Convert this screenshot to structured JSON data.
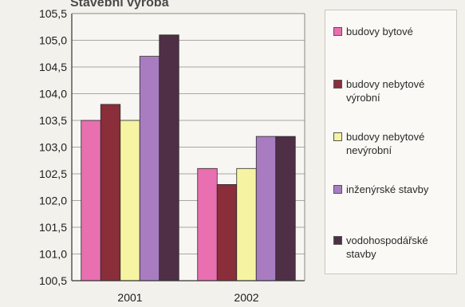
{
  "chart_data": {
    "type": "bar",
    "title": "",
    "title_fragment": "Stavební výroba",
    "xlabel": "",
    "ylabel": "",
    "categories": [
      "2001",
      "2002"
    ],
    "ylim": [
      100.5,
      105.5
    ],
    "yticks": [
      "105,5",
      "105,0",
      "104,5",
      "104,0",
      "103,5",
      "103,0",
      "102,5",
      "102,0",
      "101,5",
      "101,0",
      "100,5"
    ],
    "ytick_values": [
      105.5,
      105.0,
      104.5,
      104.0,
      103.5,
      103.0,
      102.5,
      102.0,
      101.5,
      101.0,
      100.5
    ],
    "grid": true,
    "legend_position": "right",
    "series": [
      {
        "name": "budovy bytové",
        "color": "#e86fb0",
        "values": [
          103.5,
          102.6
        ]
      },
      {
        "name": "budovy nebytové výrobní",
        "color": "#8a2e3a",
        "values": [
          103.8,
          102.3
        ]
      },
      {
        "name": "budovy nebytové nevýrobní",
        "color": "#f6f3a2",
        "values": [
          103.5,
          102.6
        ]
      },
      {
        "name": "inženýrské stavby",
        "color": "#a97cc2",
        "values": [
          104.7,
          103.2
        ]
      },
      {
        "name": "vodohospodářské stavby",
        "color": "#4f2f45",
        "values": [
          105.1,
          103.2
        ]
      }
    ]
  }
}
